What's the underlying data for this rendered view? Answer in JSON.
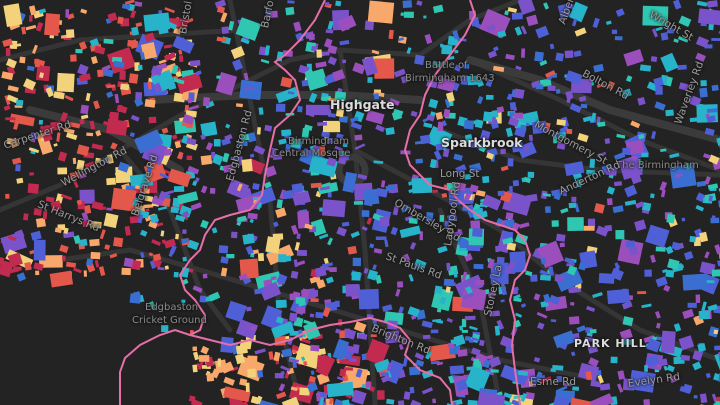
{
  "map": {
    "colors": {
      "background": "#232323",
      "road": "#353535",
      "road_major": "#3b3b3b",
      "boundary": "#e56fa7",
      "palette": [
        "#3a6fd1",
        "#4f5fd6",
        "#7a52c9",
        "#9a4fbd",
        "#27b3c9",
        "#30c7b2",
        "#f2d27a",
        "#f7a86a",
        "#e3584b",
        "#c22a4f"
      ]
    },
    "places": {
      "highgate": "Highgate",
      "sparkbrook": "Sparkbrook",
      "park_hill": "PARK HILL"
    },
    "pois": {
      "mosque_line1": "Birmingham",
      "mosque_line2": "Central Mosque",
      "battle_line1": "Battle of",
      "battle_line2": "Birmingham 1643",
      "cricket_line1": "Edgbaston",
      "cricket_line2": "Cricket Ground",
      "the_birmingham": "The Birmingham"
    },
    "streets": {
      "bristol_st": "Bristol St",
      "barford_st": "Barford St",
      "wellington_rd": "Wellington Rd",
      "carpenter_rd": "Carpenter Rd",
      "st_harrys_rd": "St Harrys Rd",
      "belgrave_rd": "Belgrave Rd",
      "edgbaston_rd": "Edgbaston Rd",
      "ombersley_rd": "Ombersley Rd",
      "st_pauls_rd": "St Pauls Rd",
      "ladypool_rd": "Ladypool Rd",
      "stoney_la": "Stoney La",
      "long_st": "Long St",
      "bolton_rd": "Bolton Rd",
      "montgomery_st": "Montgomery St",
      "waverley_rd": "Waverley Rd",
      "wright_st": "Wright St",
      "albert_rd": "Albert Rd",
      "anderton_rd": "Anderton Rd",
      "esme_rd": "Esme Rd",
      "evelyn_rd": "Evelyn Rd",
      "brighton_rd": "Brighton Rd"
    }
  }
}
